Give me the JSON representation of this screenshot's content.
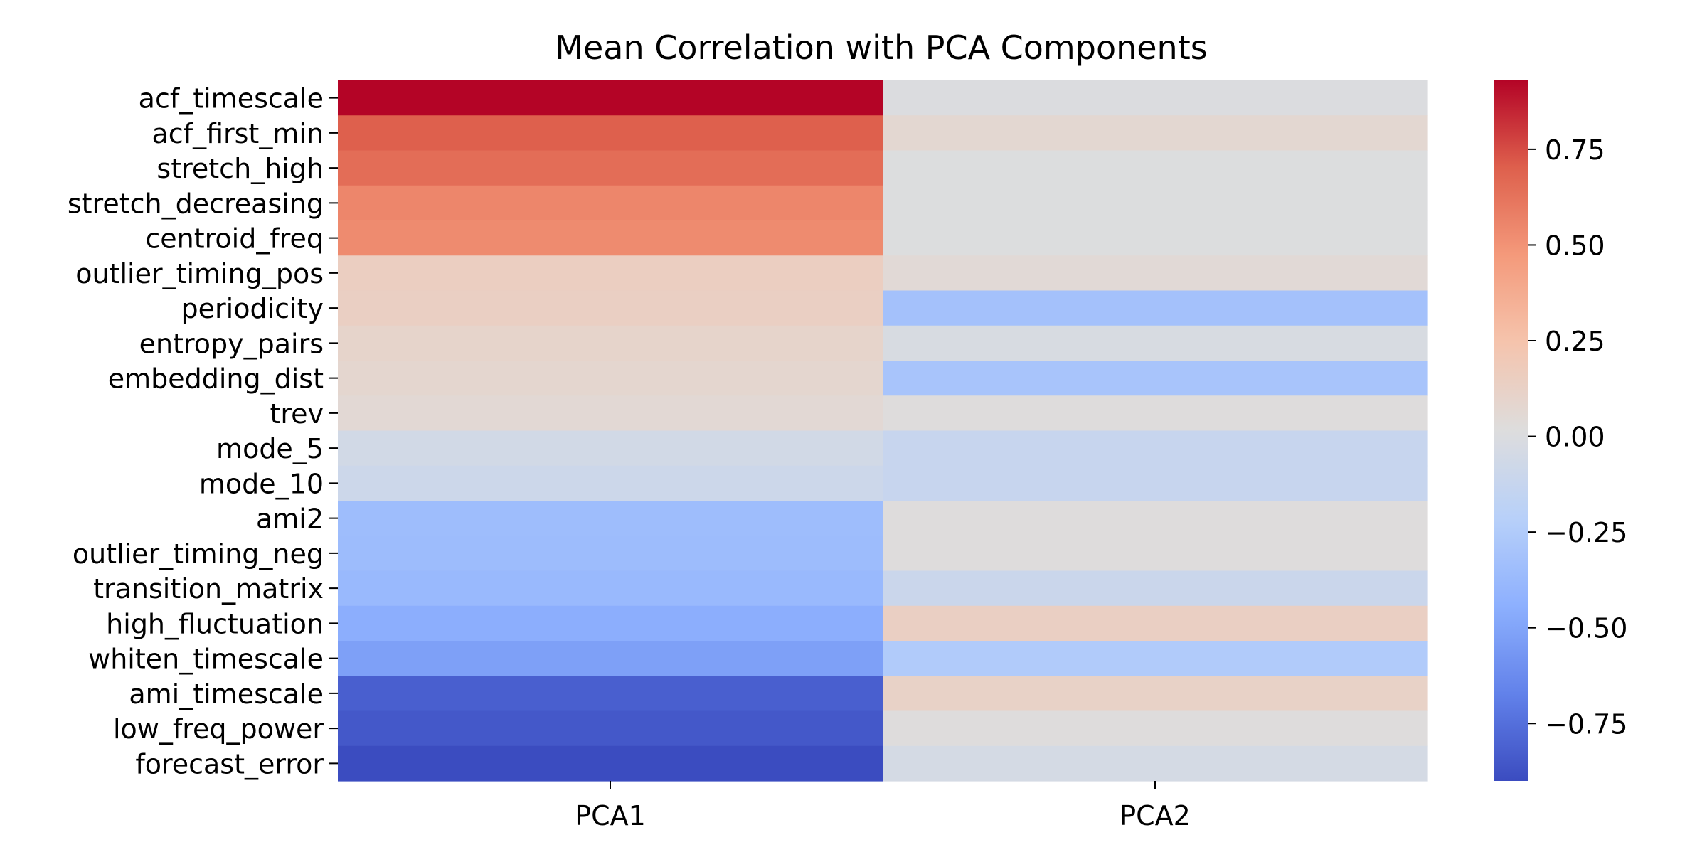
{
  "chart_data": {
    "type": "heatmap",
    "title": "Mean Correlation with PCA Components",
    "xlabel": "",
    "ylabel": "",
    "x_categories": [
      "PCA1",
      "PCA2"
    ],
    "y_categories": [
      "acf_timescale",
      "acf_first_min",
      "stretch_high",
      "stretch_decreasing",
      "centroid_freq",
      "outlier_timing_pos",
      "periodicity",
      "entropy_pairs",
      "embedding_dist",
      "trev",
      "mode_5",
      "mode_10",
      "ami2",
      "outlier_timing_neg",
      "transition_matrix",
      "high_fluctuation",
      "whiten_timescale",
      "ami_timescale",
      "low_freq_power",
      "forecast_error"
    ],
    "values": [
      [
        0.93,
        0.0
      ],
      [
        0.7,
        0.07
      ],
      [
        0.65,
        0.01
      ],
      [
        0.55,
        0.01
      ],
      [
        0.53,
        0.01
      ],
      [
        0.15,
        0.05
      ],
      [
        0.14,
        -0.32
      ],
      [
        0.1,
        -0.02
      ],
      [
        0.08,
        -0.3
      ],
      [
        0.06,
        0.02
      ],
      [
        -0.06,
        -0.12
      ],
      [
        -0.09,
        -0.12
      ],
      [
        -0.35,
        0.02
      ],
      [
        -0.36,
        0.02
      ],
      [
        -0.38,
        -0.1
      ],
      [
        -0.45,
        0.14
      ],
      [
        -0.52,
        -0.25
      ],
      [
        -0.82,
        0.12
      ],
      [
        -0.85,
        0.02
      ],
      [
        -0.9,
        -0.04
      ]
    ],
    "colorbar": {
      "vmin": -0.9,
      "vmax": 0.93,
      "ticks": [
        0.75,
        0.5,
        0.25,
        0.0,
        -0.25,
        -0.5,
        -0.75
      ],
      "tick_labels": [
        "0.75",
        "0.50",
        "0.25",
        "0.00",
        "−0.25",
        "−0.50",
        "−0.75"
      ]
    },
    "colormap": "coolwarm",
    "grid": false
  }
}
